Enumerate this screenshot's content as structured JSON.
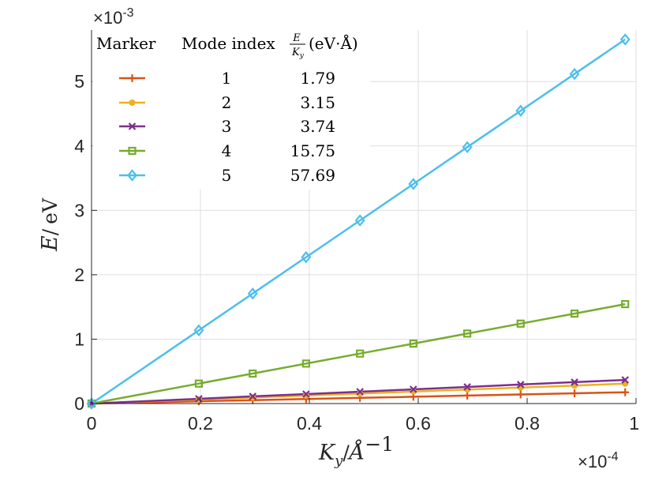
{
  "chart_data": {
    "type": "line",
    "xlabel": {
      "main": "K",
      "sub": "y",
      "sep": "/",
      "unit": "Å",
      "sup": "−1"
    },
    "ylabel": {
      "main": "E",
      "sep": "/",
      "unit": "eV"
    },
    "xlim": [
      0,
      1
    ],
    "ylim": [
      0,
      5.8
    ],
    "x_ticks": [
      0,
      0.2,
      0.4,
      0.6,
      0.8,
      1
    ],
    "x_tick_labels": [
      "0",
      "0.2",
      "0.4",
      "0.6",
      "0.8",
      "1"
    ],
    "y_ticks": [
      0,
      1,
      2,
      3,
      4,
      5
    ],
    "y_tick_labels": [
      "0",
      "1",
      "2",
      "3",
      "4",
      "5"
    ],
    "x_multiplier": {
      "base": "×10",
      "exp": "-4"
    },
    "y_multiplier": {
      "base": "×10",
      "exp": "-3"
    },
    "grid": true,
    "x": [
      0,
      0.197,
      0.296,
      0.394,
      0.493,
      0.591,
      0.69,
      0.788,
      0.887,
      0.98
    ],
    "series": [
      {
        "name": "1",
        "value": "1.79",
        "color": "#D95319",
        "marker": "plus",
        "values": [
          0,
          0.035,
          0.053,
          0.071,
          0.088,
          0.106,
          0.124,
          0.141,
          0.159,
          0.175
        ]
      },
      {
        "name": "2",
        "value": "3.15",
        "color": "#EDB120",
        "marker": "circle",
        "values": [
          0,
          0.062,
          0.093,
          0.124,
          0.155,
          0.186,
          0.217,
          0.248,
          0.279,
          0.309
        ]
      },
      {
        "name": "3",
        "value": "3.74",
        "color": "#7E2F8E",
        "marker": "x",
        "values": [
          0,
          0.074,
          0.111,
          0.147,
          0.184,
          0.221,
          0.258,
          0.295,
          0.332,
          0.367
        ]
      },
      {
        "name": "4",
        "value": "15.75",
        "color": "#77AC30",
        "marker": "square",
        "values": [
          0,
          0.31,
          0.466,
          0.621,
          0.776,
          0.931,
          1.087,
          1.241,
          1.397,
          1.544
        ]
      },
      {
        "name": "5",
        "value": "57.69",
        "color": "#4DBEEE",
        "marker": "diamond",
        "values": [
          0,
          1.137,
          1.708,
          2.273,
          2.844,
          3.409,
          3.981,
          4.546,
          5.117,
          5.654
        ]
      }
    ],
    "legend": {
      "placement": "top-left",
      "col_marker": "Marker",
      "col_mode": "Mode index",
      "col_ratio_num": "E",
      "col_ratio_den_main": "K",
      "col_ratio_den_sub": "y",
      "col_ratio_unit": "(eV·Å)"
    }
  }
}
